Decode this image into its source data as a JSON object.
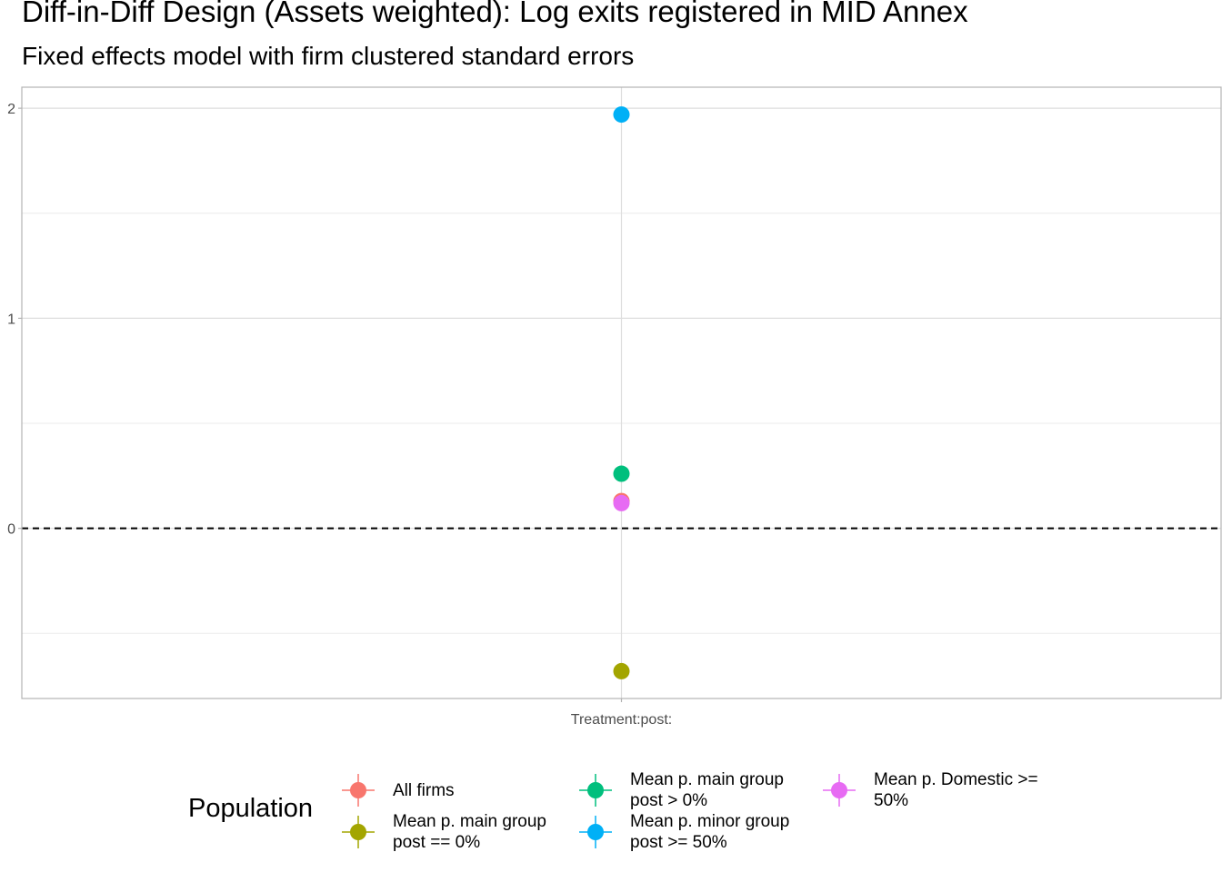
{
  "title": "Diff-in-Diff Design (Assets weighted): Log exits registered in MID Annex",
  "subtitle": "Fixed effects model with firm clustered standard errors",
  "chart_data": {
    "type": "scatter",
    "title": "Diff-in-Diff Design (Assets weighted): Log exits registered in MID Annex",
    "subtitle": "Fixed effects model with firm clustered standard errors",
    "xlabel": "",
    "ylabel": "",
    "categories": [
      "Treatment:post:"
    ],
    "y_ticks": [
      0,
      1,
      2
    ],
    "ylim": [
      -0.81,
      2.1
    ],
    "grid": true,
    "reference_line": {
      "y": 0,
      "style": "dashed"
    },
    "legend_title": "Population",
    "legend_position": "bottom",
    "series": [
      {
        "name": "All firms",
        "color": "#F8766D",
        "values": [
          0.13
        ]
      },
      {
        "name": "Mean p. main group post == 0%",
        "color": "#A3A500",
        "values": [
          -0.68
        ]
      },
      {
        "name": "Mean p. main group post > 0%",
        "color": "#00BF7D",
        "values": [
          0.26
        ]
      },
      {
        "name": "Mean p. minor group post >= 50%",
        "color": "#00B0F6",
        "values": [
          1.97
        ]
      },
      {
        "name": "Mean p. Domestic >= 50%",
        "color": "#E76BF3",
        "values": [
          0.12
        ]
      }
    ]
  },
  "legend": {
    "title": "Population",
    "items": [
      {
        "line1": "All firms",
        "line2": ""
      },
      {
        "line1": "Mean p. main group",
        "line2": "post == 0%"
      },
      {
        "line1": "Mean p. main group",
        "line2": "post > 0%"
      },
      {
        "line1": "Mean p. minor group",
        "line2": "post >= 50%"
      },
      {
        "line1": "Mean p. Domestic >=",
        "line2": "50%"
      }
    ]
  }
}
